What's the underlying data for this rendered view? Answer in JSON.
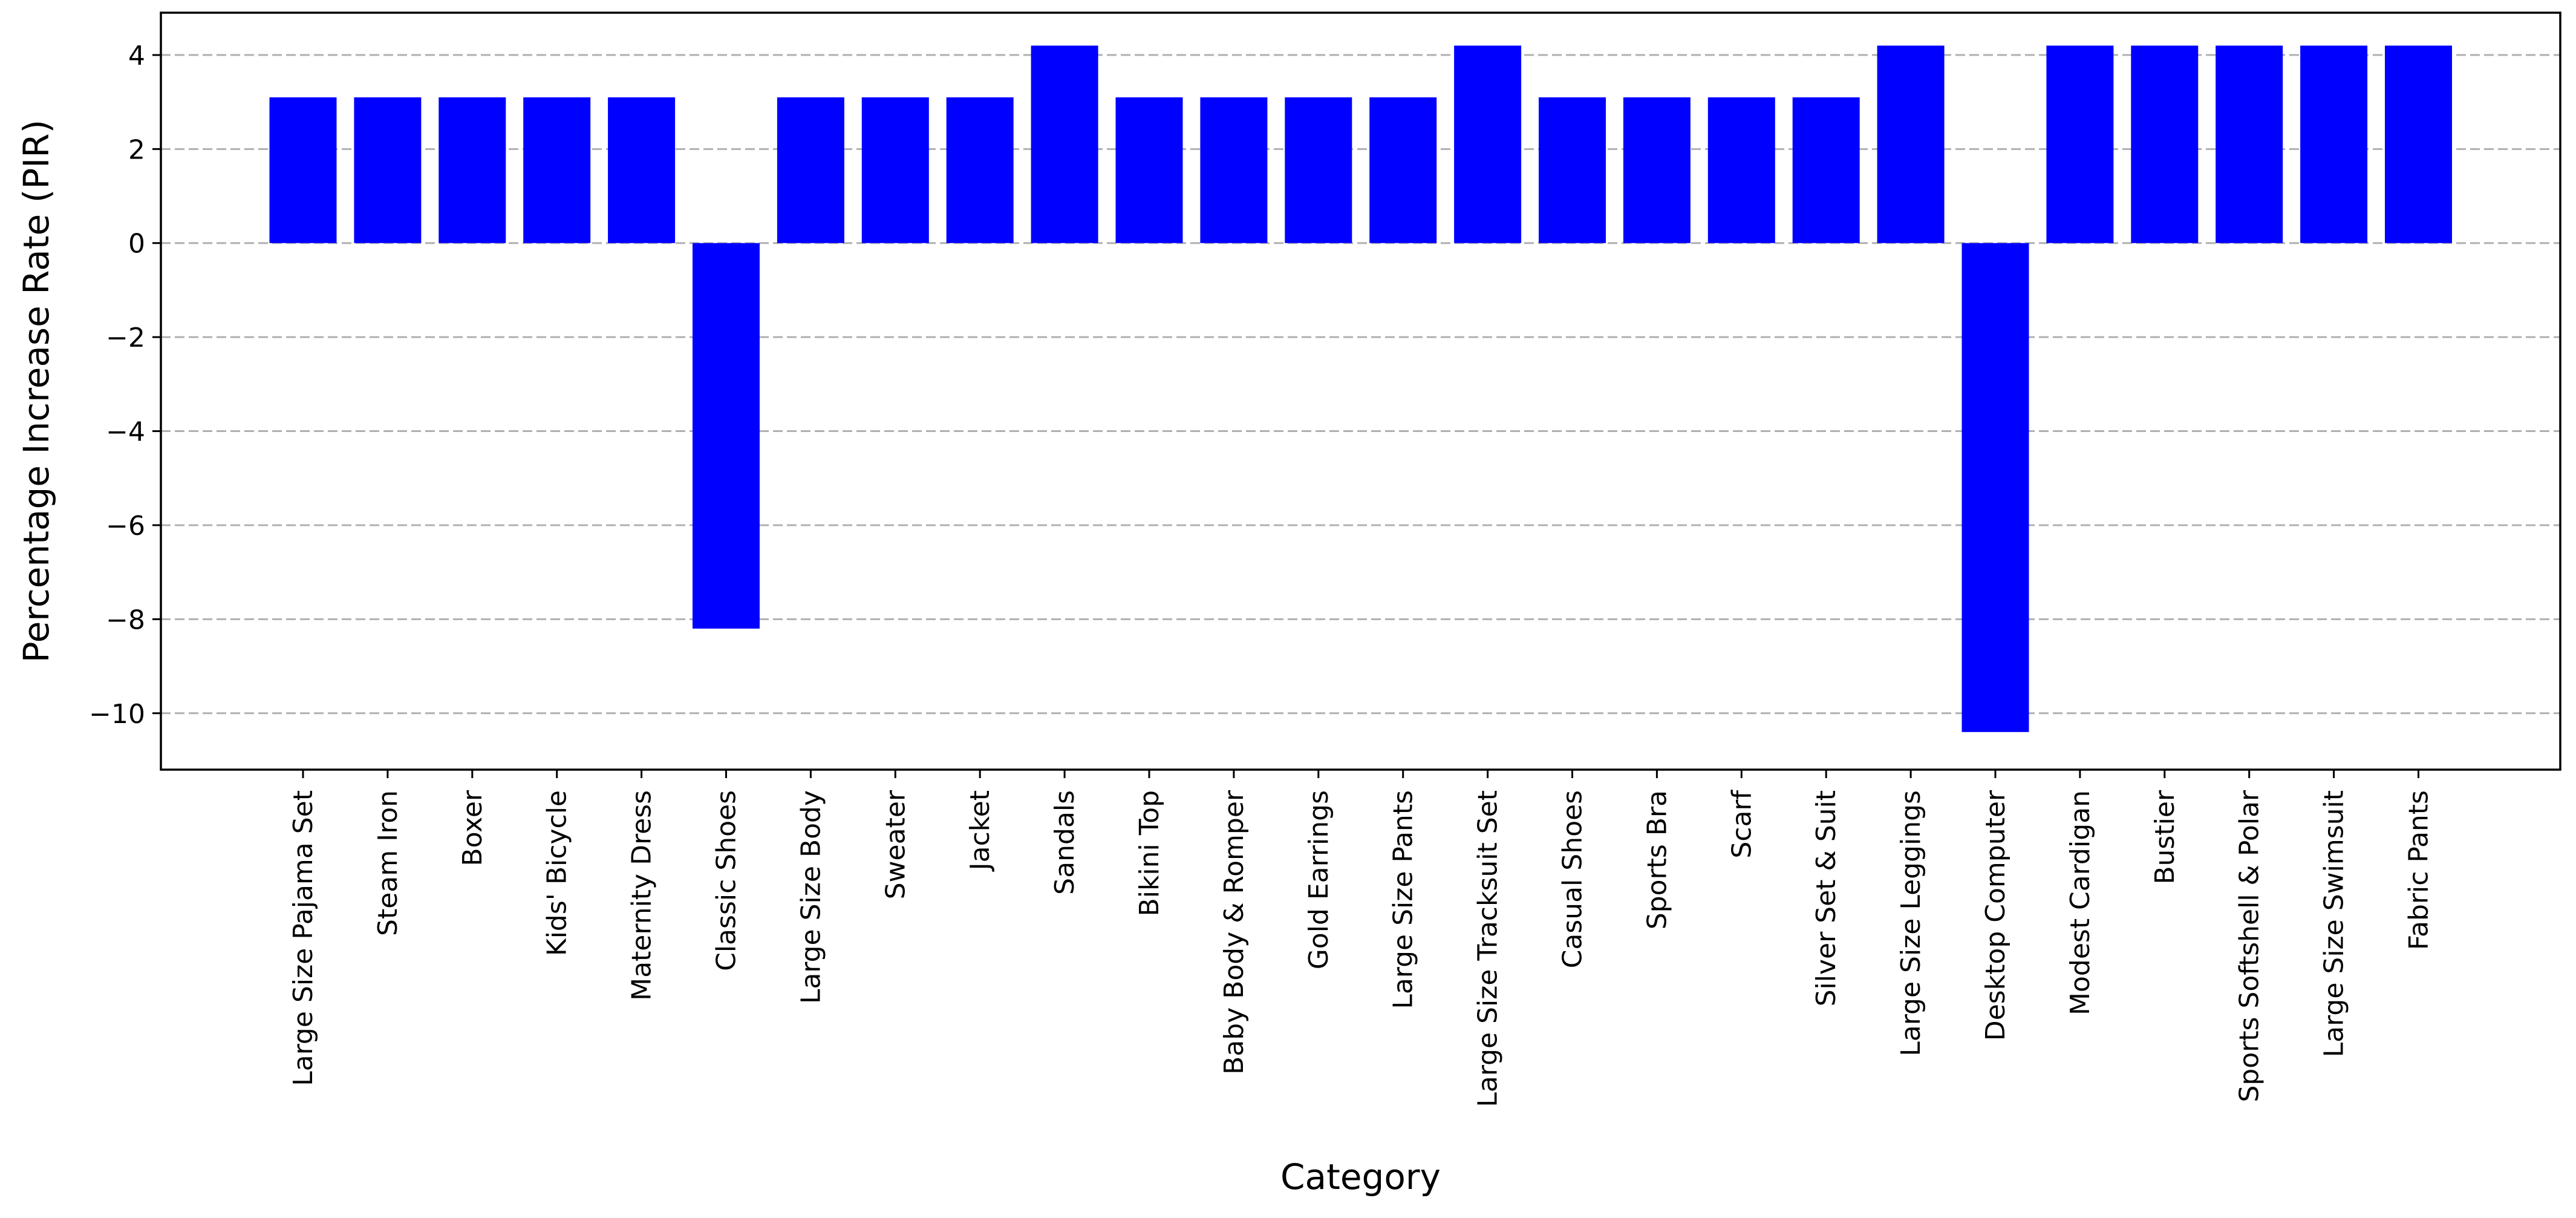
{
  "chart_data": {
    "type": "bar",
    "title": "",
    "xlabel": "Category",
    "ylabel": "Percentage Increase Rate (PIR)",
    "ylim": [
      -11.2,
      4.9
    ],
    "yticks": [
      -10,
      -8,
      -6,
      -4,
      -2,
      0,
      2,
      4
    ],
    "grid": "horizontal dashed",
    "bar_color": "#0000ff",
    "categories": [
      "Large Size Pajama Set",
      "Steam Iron",
      "Boxer",
      "Kids' Bicycle",
      "Maternity Dress",
      "Classic Shoes",
      "Large Size Body",
      "Sweater",
      "Jacket",
      "Sandals",
      "Bikini Top",
      "Baby Body & Romper",
      "Gold Earrings",
      "Large Size Pants",
      "Large Size Tracksuit Set",
      "Casual Shoes",
      "Sports Bra",
      "Scarf",
      "Silver Set & Suit",
      "Large Size Leggings",
      "Desktop Computer",
      "Modest Cardigan",
      "Bustier",
      "Sports Softshell & Polar",
      "Large Size Swimsuit",
      "Fabric Pants"
    ],
    "values": [
      3.1,
      3.1,
      3.1,
      3.1,
      3.1,
      -8.2,
      3.1,
      3.1,
      3.1,
      4.2,
      3.1,
      3.1,
      3.1,
      3.1,
      4.2,
      3.1,
      3.1,
      3.1,
      3.1,
      4.2,
      -10.4,
      4.2,
      4.2,
      4.2,
      4.2,
      4.2
    ]
  }
}
